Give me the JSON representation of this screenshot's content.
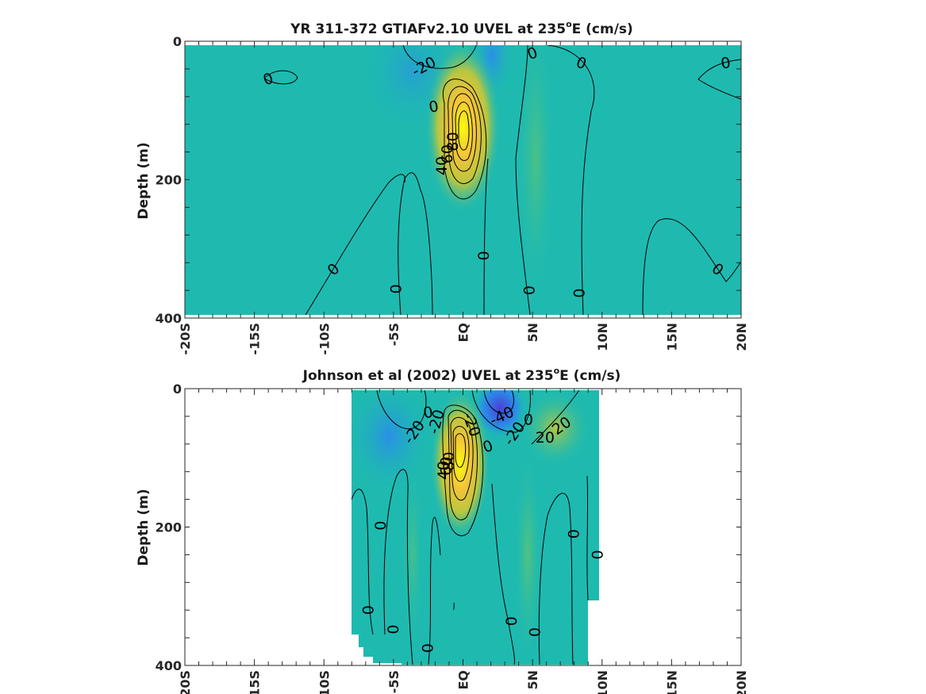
{
  "chart_data": [
    {
      "type": "heatmap",
      "title": "YR 311-372 GTIAFv2.10 UVEL at 235",
      "title_sup": "o",
      "title_tail": "E (cm/s)",
      "ylabel": "Depth (m)",
      "xlim": [
        -20,
        20
      ],
      "ylim": [
        400,
        0
      ],
      "x_ticks": [
        -20,
        -15,
        -10,
        -5,
        0,
        5,
        10,
        15,
        20
      ],
      "x_tick_labels": [
        "-20S",
        "-15S",
        "-10S",
        "-5S",
        "EQ",
        "5N",
        "10N",
        "15N",
        "20N"
      ],
      "y_ticks": [
        0,
        200,
        400
      ],
      "y_tick_labels": [
        "0",
        "200",
        "400"
      ],
      "data_extent": [
        -20,
        20
      ],
      "jet_core": {
        "lat": 0,
        "depth": 120,
        "max": 80
      },
      "contour_labels": [
        {
          "text": "-20",
          "lat": -2.8,
          "depth": 37,
          "angle": -28
        },
        {
          "text": "0",
          "lat": -14,
          "depth": 55,
          "angle": -20
        },
        {
          "text": "0",
          "lat": 5,
          "depth": 18,
          "angle": -20
        },
        {
          "text": "0",
          "lat": 8.5,
          "depth": 32,
          "angle": 20
        },
        {
          "text": "0",
          "lat": 18.9,
          "depth": 32,
          "angle": -10
        },
        {
          "text": "0",
          "lat": -2.1,
          "depth": 95,
          "angle": -10
        },
        {
          "text": "80",
          "lat": -0.7,
          "depth": 145,
          "angle": -90
        },
        {
          "text": "60",
          "lat": -1.1,
          "depth": 163,
          "angle": -90
        },
        {
          "text": "40",
          "lat": -1.5,
          "depth": 180,
          "angle": -90
        },
        {
          "text": "0",
          "lat": 1.5,
          "depth": 310,
          "angle": -90
        },
        {
          "text": "0",
          "lat": -9.3,
          "depth": 330,
          "angle": -45
        },
        {
          "text": "0",
          "lat": -4.8,
          "depth": 358,
          "angle": -90
        },
        {
          "text": "0",
          "lat": 4.8,
          "depth": 360,
          "angle": -90
        },
        {
          "text": "0",
          "lat": 8.4,
          "depth": 364,
          "angle": -90
        },
        {
          "text": "0",
          "lat": 18.3,
          "depth": 330,
          "angle": 40
        }
      ]
    },
    {
      "type": "heatmap",
      "title": "Johnson et al (2002) UVEL at 235",
      "title_sup": "o",
      "title_tail": "E (cm/s)",
      "ylabel": "Depth (m)",
      "xlim": [
        -20,
        20
      ],
      "ylim": [
        400,
        0
      ],
      "x_ticks": [
        -20,
        -15,
        -10,
        -5,
        0,
        5,
        10,
        15,
        20
      ],
      "x_tick_labels": [
        "-20S",
        "-15S",
        "-10S",
        "-5S",
        "EQ",
        "5N",
        "10N",
        "15N",
        "20N"
      ],
      "y_ticks": [
        0,
        200,
        400
      ],
      "y_tick_labels": [
        "0",
        "200",
        "400"
      ],
      "data_extent": [
        -8,
        10
      ],
      "jet_core": {
        "lat": -0.3,
        "depth": 80,
        "max": 80
      },
      "contour_labels": [
        {
          "text": "-20",
          "lat": -3.5,
          "depth": 63,
          "angle": -55
        },
        {
          "text": "0",
          "lat": -2.5,
          "depth": 35,
          "angle": -10
        },
        {
          "text": "-20",
          "lat": -1.9,
          "depth": 48,
          "angle": -75
        },
        {
          "text": "-20",
          "lat": 0.6,
          "depth": 52,
          "angle": 70
        },
        {
          "text": "-40",
          "lat": 2.8,
          "depth": 40,
          "angle": -25
        },
        {
          "text": "-20",
          "lat": 3.7,
          "depth": 65,
          "angle": -55
        },
        {
          "text": "20",
          "lat": 5.9,
          "depth": 71,
          "angle": 0
        },
        {
          "text": "20",
          "lat": 7.1,
          "depth": 54,
          "angle": -35
        },
        {
          "text": "0",
          "lat": 4.7,
          "depth": 45,
          "angle": 0
        },
        {
          "text": "0",
          "lat": 1.8,
          "depth": 84,
          "angle": -20
        },
        {
          "text": "80",
          "lat": -1.0,
          "depth": 105,
          "angle": -90
        },
        {
          "text": "60",
          "lat": -1.2,
          "depth": 112,
          "angle": -90
        },
        {
          "text": "40",
          "lat": -1.4,
          "depth": 118,
          "angle": -90
        },
        {
          "text": "0",
          "lat": -5.9,
          "depth": 198,
          "angle": -90
        },
        {
          "text": "0",
          "lat": 8.0,
          "depth": 210,
          "angle": -90
        },
        {
          "text": "0",
          "lat": 9.7,
          "depth": 240,
          "angle": -90
        },
        {
          "text": "0",
          "lat": -6.8,
          "depth": 320,
          "angle": -90
        },
        {
          "text": "0",
          "lat": -5.0,
          "depth": 348,
          "angle": -90
        },
        {
          "text": "0",
          "lat": 3.5,
          "depth": 336,
          "angle": -90
        },
        {
          "text": "0",
          "lat": 5.2,
          "depth": 352,
          "angle": -90
        },
        {
          "text": "0",
          "lat": -2.5,
          "depth": 375,
          "angle": -90
        }
      ]
    }
  ],
  "colors": {
    "background_flow": "#1ebab0",
    "westward_flow": "#2a8fe8",
    "strong_westward": "#4a3fd9",
    "jet_core_max": "#f8fa0d",
    "jet_mid": "#f0b53a",
    "jet_outer": "#8cc455",
    "contour_line": "#000000"
  }
}
